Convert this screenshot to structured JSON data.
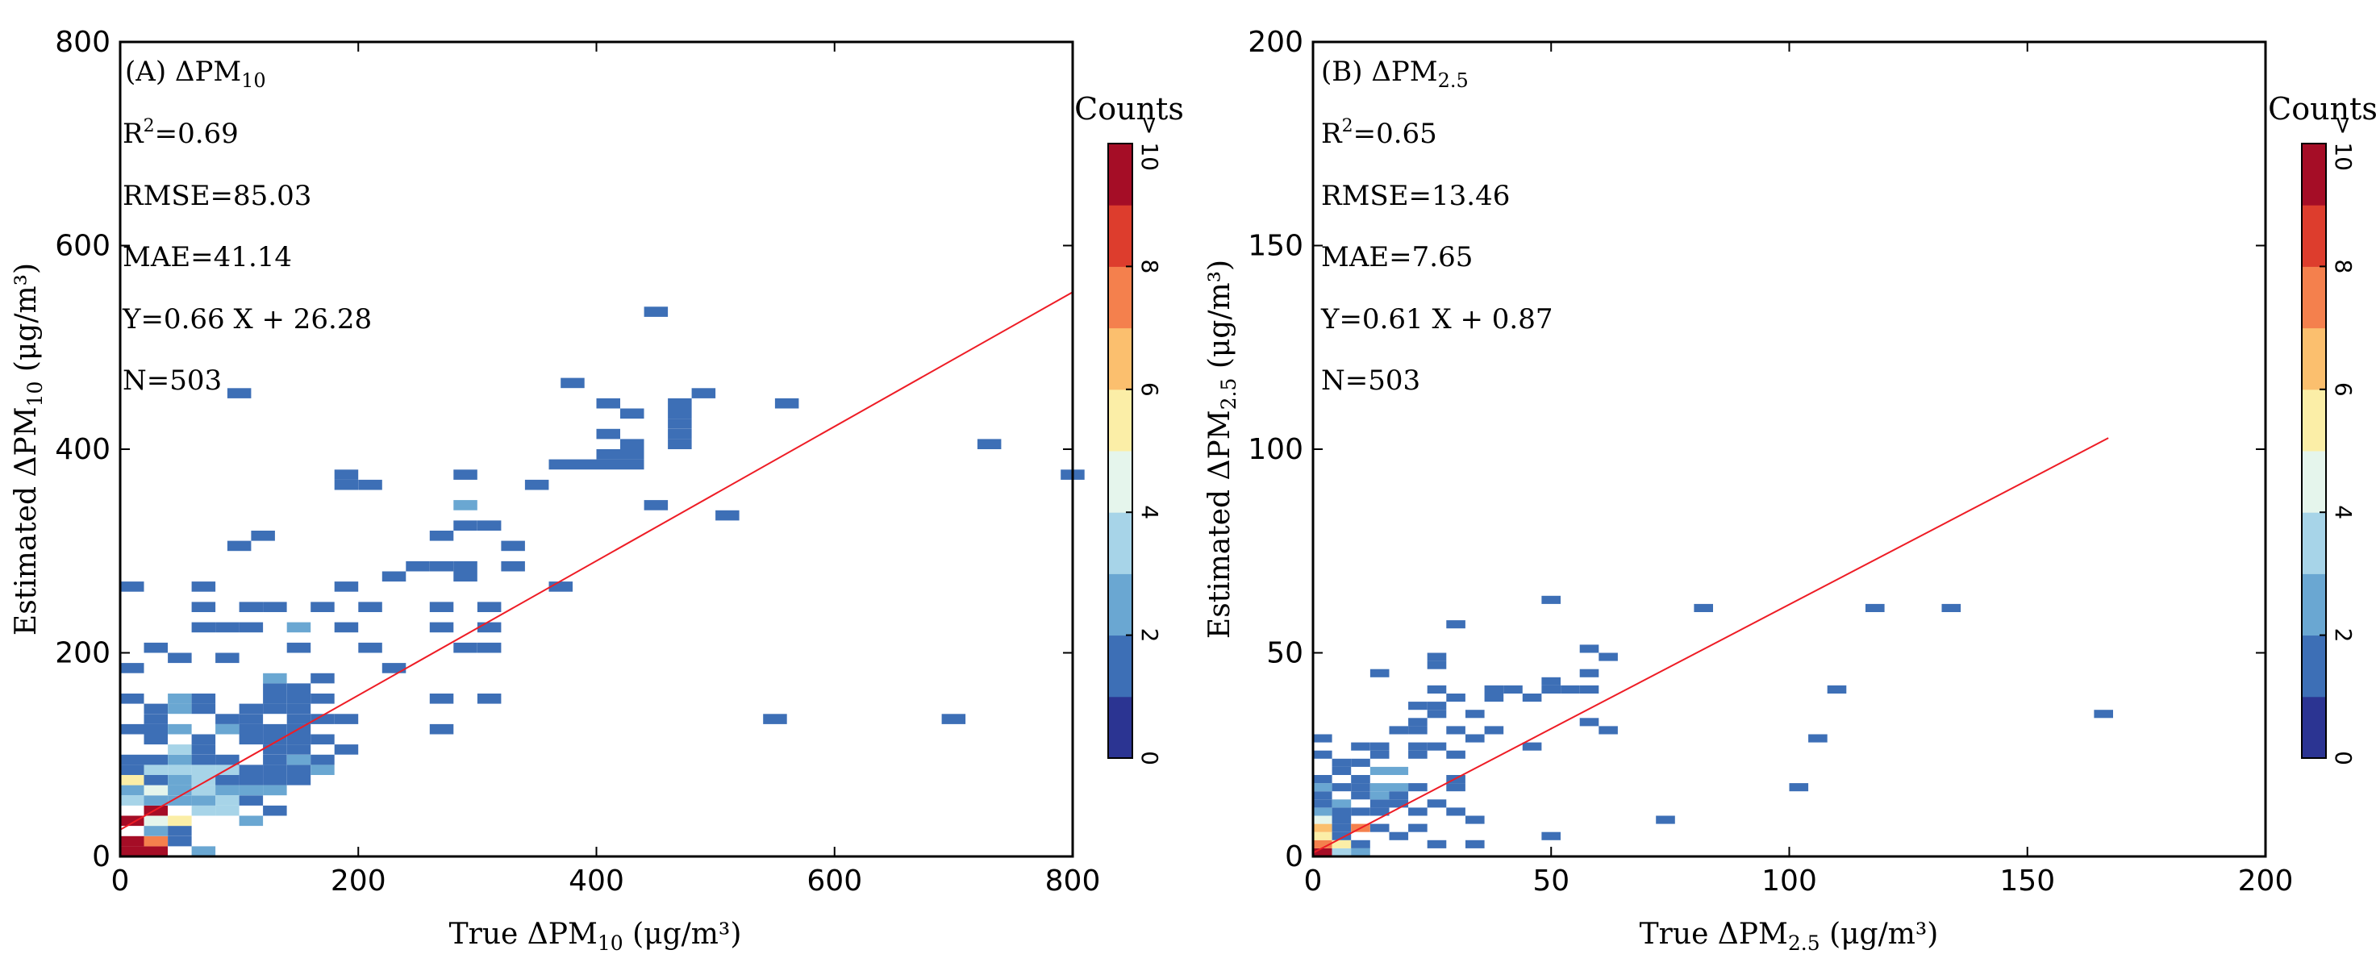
{
  "colors": {
    "regression_line": "#ee1c25",
    "frame": "#000000",
    "bins": [
      "#2b3492",
      "#3d6fb6",
      "#6aa7d2",
      "#a7d4e8",
      "#e5f5ec",
      "#fbeea7",
      "#fbbf6e",
      "#f4804d",
      "#dd3d2d",
      "#a50d26"
    ]
  },
  "charts": [
    {
      "type": "heatmap",
      "title": "(A) ΔPM",
      "title_sub": "10",
      "stats": {
        "r2_label": "R",
        "r2_sup": "2",
        "r2_value": "=0.69",
        "rmse": "RMSE=85.03",
        "mae": "MAE=41.14",
        "equation": "Y=0.66 X + 26.28",
        "n": "N=503"
      },
      "xlabel": {
        "pre": "True ΔPM",
        "sub": "10",
        "post": " (μg/m³)"
      },
      "ylabel": {
        "pre": "Estimated ΔPM",
        "sub": "10",
        "post": " (μg/m³)"
      },
      "xlim": [
        0,
        800
      ],
      "ylim": [
        0,
        800
      ],
      "xticks": [
        "0",
        "200",
        "400",
        "600",
        "800"
      ],
      "yticks": [
        "0",
        "200",
        "400",
        "600",
        "800"
      ],
      "fit": {
        "slope": 0.66,
        "intercept": 26.28,
        "x_end": 800
      },
      "colorbar": {
        "title": "Counts",
        "ticks": [
          "0",
          "2",
          "4",
          "6",
          "8",
          "> 10"
        ]
      },
      "bin_w": 20,
      "bin_h": 10,
      "cells": [
        [
          0,
          0,
          10
        ],
        [
          20,
          0,
          10
        ],
        [
          0,
          10,
          10
        ],
        [
          20,
          10,
          8
        ],
        [
          20,
          20,
          3
        ],
        [
          40,
          20,
          2
        ],
        [
          40,
          10,
          2
        ],
        [
          60,
          0,
          3
        ],
        [
          0,
          30,
          10
        ],
        [
          20,
          30,
          5
        ],
        [
          40,
          30,
          6
        ],
        [
          20,
          40,
          10
        ],
        [
          60,
          40,
          4
        ],
        [
          80,
          40,
          4
        ],
        [
          100,
          30,
          3
        ],
        [
          120,
          40,
          2
        ],
        [
          0,
          50,
          4
        ],
        [
          20,
          50,
          3
        ],
        [
          40,
          50,
          3
        ],
        [
          60,
          50,
          3
        ],
        [
          80,
          50,
          4
        ],
        [
          100,
          50,
          2
        ],
        [
          0,
          60,
          3
        ],
        [
          20,
          60,
          5
        ],
        [
          40,
          60,
          3
        ],
        [
          60,
          60,
          4
        ],
        [
          80,
          60,
          3
        ],
        [
          100,
          60,
          3
        ],
        [
          120,
          60,
          3
        ],
        [
          0,
          70,
          6
        ],
        [
          20,
          70,
          2
        ],
        [
          40,
          70,
          3
        ],
        [
          60,
          70,
          4
        ],
        [
          80,
          70,
          2
        ],
        [
          100,
          70,
          2
        ],
        [
          120,
          70,
          2
        ],
        [
          140,
          70,
          2
        ],
        [
          0,
          80,
          2
        ],
        [
          20,
          80,
          4
        ],
        [
          40,
          80,
          4
        ],
        [
          60,
          80,
          4
        ],
        [
          80,
          80,
          4
        ],
        [
          100,
          80,
          2
        ],
        [
          120,
          80,
          2
        ],
        [
          140,
          80,
          2
        ],
        [
          160,
          80,
          3
        ],
        [
          0,
          90,
          2
        ],
        [
          20,
          90,
          2
        ],
        [
          40,
          90,
          3
        ],
        [
          60,
          90,
          2
        ],
        [
          80,
          90,
          2
        ],
        [
          120,
          90,
          2
        ],
        [
          140,
          90,
          3
        ],
        [
          160,
          90,
          2
        ],
        [
          40,
          100,
          4
        ],
        [
          60,
          100,
          2
        ],
        [
          120,
          100,
          2
        ],
        [
          140,
          100,
          2
        ],
        [
          180,
          100,
          2
        ],
        [
          20,
          110,
          2
        ],
        [
          60,
          110,
          2
        ],
        [
          100,
          110,
          2
        ],
        [
          120,
          110,
          2
        ],
        [
          140,
          110,
          2
        ],
        [
          160,
          110,
          2
        ],
        [
          0,
          120,
          2
        ],
        [
          20,
          120,
          2
        ],
        [
          40,
          120,
          3
        ],
        [
          80,
          120,
          3
        ],
        [
          100,
          120,
          2
        ],
        [
          120,
          120,
          2
        ],
        [
          140,
          120,
          2
        ],
        [
          260,
          120,
          2
        ],
        [
          20,
          130,
          2
        ],
        [
          80,
          130,
          2
        ],
        [
          100,
          130,
          2
        ],
        [
          140,
          130,
          2
        ],
        [
          160,
          130,
          2
        ],
        [
          180,
          130,
          2
        ],
        [
          20,
          140,
          2
        ],
        [
          40,
          140,
          3
        ],
        [
          60,
          140,
          2
        ],
        [
          100,
          140,
          2
        ],
        [
          120,
          140,
          2
        ],
        [
          140,
          140,
          2
        ],
        [
          540,
          130,
          2
        ],
        [
          690,
          130,
          2
        ],
        [
          0,
          150,
          2
        ],
        [
          40,
          150,
          3
        ],
        [
          60,
          150,
          2
        ],
        [
          120,
          150,
          2
        ],
        [
          140,
          150,
          2
        ],
        [
          160,
          150,
          2
        ],
        [
          260,
          150,
          2
        ],
        [
          300,
          150,
          2
        ],
        [
          120,
          160,
          2
        ],
        [
          140,
          160,
          2
        ],
        [
          120,
          170,
          3
        ],
        [
          160,
          170,
          2
        ],
        [
          220,
          180,
          2
        ],
        [
          0,
          180,
          2
        ],
        [
          40,
          190,
          2
        ],
        [
          80,
          190,
          2
        ],
        [
          20,
          200,
          2
        ],
        [
          140,
          200,
          2
        ],
        [
          200,
          200,
          2
        ],
        [
          280,
          200,
          2
        ],
        [
          300,
          200,
          2
        ],
        [
          60,
          220,
          2
        ],
        [
          80,
          220,
          2
        ],
        [
          100,
          220,
          2
        ],
        [
          140,
          220,
          3
        ],
        [
          180,
          220,
          2
        ],
        [
          260,
          220,
          2
        ],
        [
          300,
          220,
          2
        ],
        [
          60,
          240,
          2
        ],
        [
          100,
          240,
          2
        ],
        [
          120,
          240,
          2
        ],
        [
          160,
          240,
          2
        ],
        [
          200,
          240,
          2
        ],
        [
          260,
          240,
          2
        ],
        [
          300,
          240,
          2
        ],
        [
          0,
          260,
          2
        ],
        [
          60,
          260,
          2
        ],
        [
          180,
          260,
          2
        ],
        [
          220,
          270,
          2
        ],
        [
          280,
          270,
          2
        ],
        [
          360,
          260,
          2
        ],
        [
          240,
          280,
          2
        ],
        [
          260,
          280,
          2
        ],
        [
          280,
          280,
          2
        ],
        [
          320,
          280,
          2
        ],
        [
          320,
          300,
          2
        ],
        [
          260,
          310,
          2
        ],
        [
          300,
          320,
          2
        ],
        [
          280,
          320,
          2
        ],
        [
          90,
          300,
          2
        ],
        [
          110,
          310,
          2
        ],
        [
          280,
          340,
          3
        ],
        [
          180,
          360,
          2
        ],
        [
          200,
          360,
          2
        ],
        [
          280,
          370,
          2
        ],
        [
          340,
          360,
          2
        ],
        [
          440,
          340,
          2
        ],
        [
          500,
          330,
          2
        ],
        [
          180,
          370,
          2
        ],
        [
          360,
          380,
          2
        ],
        [
          380,
          380,
          2
        ],
        [
          400,
          380,
          2
        ],
        [
          420,
          380,
          2
        ],
        [
          400,
          390,
          2
        ],
        [
          420,
          390,
          2
        ],
        [
          400,
          410,
          2
        ],
        [
          420,
          400,
          2
        ],
        [
          720,
          400,
          2
        ],
        [
          790,
          370,
          2
        ],
        [
          460,
          400,
          2
        ],
        [
          460,
          410,
          2
        ],
        [
          460,
          420,
          2
        ],
        [
          460,
          430,
          2
        ],
        [
          460,
          440,
          2
        ],
        [
          480,
          450,
          2
        ],
        [
          420,
          430,
          2
        ],
        [
          400,
          440,
          2
        ],
        [
          550,
          440,
          2
        ],
        [
          90,
          450,
          2
        ],
        [
          370,
          460,
          2
        ],
        [
          440,
          530,
          2
        ]
      ]
    },
    {
      "type": "heatmap",
      "title": "(B) ΔPM",
      "title_sub": "2.5",
      "stats": {
        "r2_label": "R",
        "r2_sup": "2",
        "r2_value": "=0.65",
        "rmse": "RMSE=13.46",
        "mae": "MAE=7.65",
        "equation": "Y=0.61 X + 0.87",
        "n": "N=503"
      },
      "xlabel": {
        "pre": "True ΔPM",
        "sub": "2.5",
        "post": " (μg/m³)"
      },
      "ylabel": {
        "pre": "Estimated ΔPM",
        "sub": "2.5",
        "post": " (μg/m³)"
      },
      "xlim": [
        0,
        200
      ],
      "ylim": [
        0,
        200
      ],
      "xticks": [
        "0",
        "50",
        "100",
        "150",
        "200"
      ],
      "yticks": [
        "0",
        "50",
        "100",
        "150",
        "200"
      ],
      "fit": {
        "slope": 0.61,
        "intercept": 0.87,
        "x_end": 167
      },
      "colorbar": {
        "title": "Counts",
        "ticks": [
          "0",
          "2",
          "4",
          "6",
          "8",
          "> 10"
        ]
      },
      "bin_w": 4,
      "bin_h": 2,
      "cells": [
        [
          0,
          0,
          10
        ],
        [
          4,
          0,
          4
        ],
        [
          0,
          2,
          8
        ],
        [
          4,
          2,
          6
        ],
        [
          0,
          4,
          6
        ],
        [
          4,
          4,
          2
        ],
        [
          8,
          2,
          2
        ],
        [
          8,
          0,
          3
        ],
        [
          0,
          6,
          7
        ],
        [
          4,
          6,
          2
        ],
        [
          8,
          6,
          8
        ],
        [
          0,
          8,
          5
        ],
        [
          4,
          8,
          2
        ],
        [
          12,
          6,
          2
        ],
        [
          0,
          10,
          3
        ],
        [
          4,
          10,
          2
        ],
        [
          8,
          10,
          2
        ],
        [
          12,
          10,
          2
        ],
        [
          0,
          12,
          2
        ],
        [
          4,
          12,
          3
        ],
        [
          12,
          12,
          2
        ],
        [
          16,
          12,
          2
        ],
        [
          0,
          14,
          2
        ],
        [
          8,
          14,
          2
        ],
        [
          12,
          14,
          3
        ],
        [
          16,
          14,
          2
        ],
        [
          0,
          16,
          3
        ],
        [
          4,
          16,
          2
        ],
        [
          8,
          16,
          2
        ],
        [
          12,
          16,
          3
        ],
        [
          16,
          16,
          3
        ],
        [
          20,
          16,
          2
        ],
        [
          28,
          16,
          2
        ],
        [
          0,
          18,
          2
        ],
        [
          8,
          18,
          2
        ],
        [
          12,
          20,
          3
        ],
        [
          16,
          20,
          3
        ],
        [
          4,
          22,
          2
        ],
        [
          8,
          22,
          2
        ],
        [
          0,
          24,
          2
        ],
        [
          12,
          24,
          2
        ],
        [
          20,
          24,
          2
        ],
        [
          28,
          24,
          2
        ],
        [
          0,
          28,
          2
        ],
        [
          12,
          26,
          2
        ],
        [
          20,
          26,
          2
        ],
        [
          24,
          26,
          2
        ],
        [
          32,
          28,
          2
        ],
        [
          28,
          30,
          2
        ],
        [
          36,
          30,
          2
        ],
        [
          20,
          30,
          2
        ],
        [
          16,
          30,
          2
        ],
        [
          20,
          32,
          2
        ],
        [
          24,
          34,
          2
        ],
        [
          32,
          34,
          2
        ],
        [
          24,
          36,
          2
        ],
        [
          36,
          38,
          2
        ],
        [
          20,
          36,
          2
        ],
        [
          36,
          40,
          2
        ],
        [
          40,
          40,
          2
        ],
        [
          48,
          40,
          2
        ],
        [
          52,
          40,
          2
        ],
        [
          56,
          40,
          2
        ],
        [
          44,
          38,
          2
        ],
        [
          48,
          42,
          2
        ],
        [
          56,
          44,
          2
        ],
        [
          28,
          38,
          2
        ],
        [
          24,
          40,
          2
        ],
        [
          12,
          44,
          2
        ],
        [
          24,
          46,
          2
        ],
        [
          24,
          48,
          2
        ],
        [
          60,
          48,
          2
        ],
        [
          28,
          56,
          2
        ],
        [
          56,
          50,
          2
        ],
        [
          48,
          62,
          2
        ],
        [
          80,
          60,
          2
        ],
        [
          116,
          60,
          2
        ],
        [
          132,
          60,
          2
        ],
        [
          108,
          40,
          2
        ],
        [
          104,
          28,
          2
        ],
        [
          100,
          16,
          2
        ],
        [
          72,
          8,
          2
        ],
        [
          164,
          34,
          2
        ],
        [
          60,
          30,
          2
        ],
        [
          56,
          32,
          2
        ],
        [
          44,
          26,
          2
        ],
        [
          32,
          8,
          2
        ],
        [
          48,
          4,
          2
        ],
        [
          20,
          6,
          2
        ],
        [
          24,
          2,
          2
        ],
        [
          32,
          2,
          2
        ],
        [
          16,
          4,
          2
        ],
        [
          20,
          10,
          2
        ],
        [
          24,
          12,
          2
        ],
        [
          28,
          10,
          2
        ],
        [
          28,
          18,
          2
        ],
        [
          4,
          20,
          2
        ],
        [
          8,
          26,
          2
        ]
      ]
    }
  ]
}
